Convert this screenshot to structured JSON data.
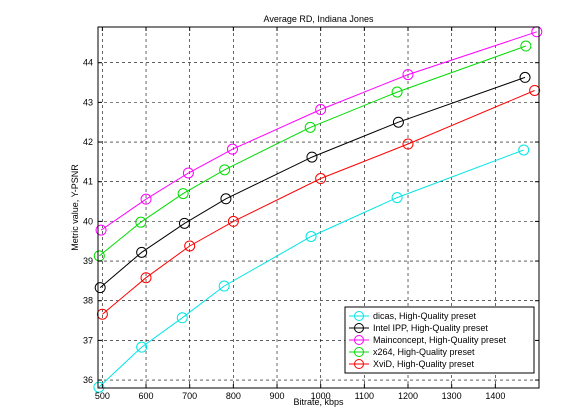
{
  "chart_data": {
    "type": "line",
    "title": "Average RD, Indiana Jones",
    "xlabel": "Bitrate, kbps",
    "ylabel": "Metric value, Y-PSNR",
    "xlim": [
      490,
      1500
    ],
    "ylim": [
      35.8,
      44.9
    ],
    "xticks": [
      500,
      600,
      700,
      800,
      900,
      1000,
      1100,
      1200,
      1300,
      1400
    ],
    "yticks": [
      36,
      37,
      38,
      39,
      40,
      41,
      42,
      43,
      44
    ],
    "grid": true,
    "grid_style": "dashed",
    "legend_position": "bottom-right",
    "series": [
      {
        "name": "dicas, High-Quality preset",
        "color": "#00e5e5",
        "x": [
          492,
          590,
          683,
          779,
          978,
          1175,
          1465
        ],
        "y": [
          35.82,
          36.83,
          37.57,
          38.37,
          39.62,
          40.6,
          41.8
        ]
      },
      {
        "name": "Intel IPP, High-Quality preset",
        "color": "#000000",
        "x": [
          495,
          590,
          688,
          783,
          980,
          1178,
          1468
        ],
        "y": [
          38.33,
          39.22,
          39.95,
          40.57,
          41.62,
          42.5,
          43.63
        ]
      },
      {
        "name": "Mainconcept, High-Quality preset",
        "color": "#ff00ff",
        "x": [
          497,
          600,
          697,
          798,
          1000,
          1200,
          1495
        ],
        "y": [
          39.78,
          40.56,
          41.22,
          41.82,
          42.82,
          43.7,
          44.78
        ]
      },
      {
        "name": "x264, High-Quality preset",
        "color": "#00dd00",
        "x": [
          493,
          588,
          685,
          780,
          976,
          1175,
          1470
        ],
        "y": [
          39.13,
          39.98,
          40.7,
          41.3,
          42.37,
          43.26,
          44.42
        ]
      },
      {
        "name": "XviD, High-Quality preset",
        "color": "#ff0000",
        "x": [
          500,
          600,
          700,
          800,
          1000,
          1200,
          1490
        ],
        "y": [
          37.66,
          38.58,
          39.38,
          40.0,
          41.08,
          41.95,
          43.3
        ]
      }
    ]
  }
}
